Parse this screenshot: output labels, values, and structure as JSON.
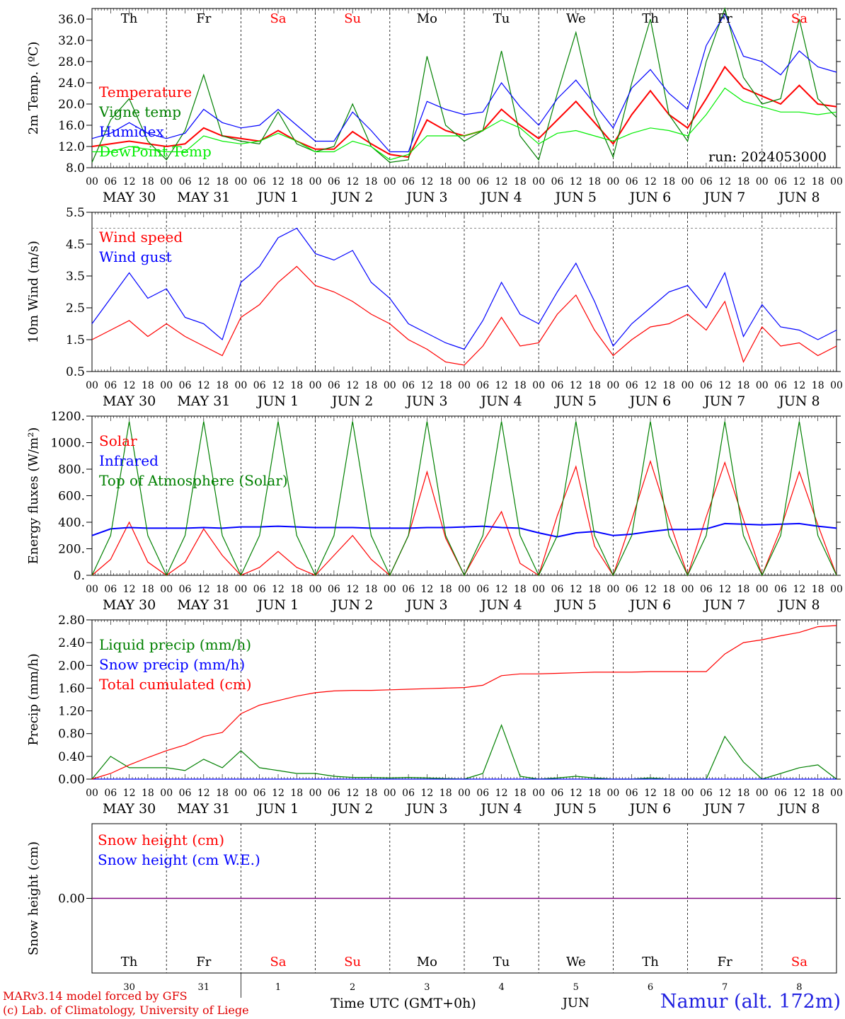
{
  "meteogram": {
    "run_label": "run: 2024053000",
    "day_names": [
      "Th",
      "Fr",
      "Sa",
      "Su",
      "Mo",
      "Tu",
      "We",
      "Th",
      "Fr",
      "Sa"
    ],
    "weekend_flags": [
      false,
      false,
      true,
      true,
      false,
      false,
      false,
      false,
      false,
      true
    ],
    "date_labels": [
      "MAY 30",
      "MAY 31",
      "JUN 1",
      "JUN 2",
      "JUN 3",
      "JUN 4",
      "JUN 5",
      "JUN 6",
      "JUN 7",
      "JUN 8"
    ],
    "hour_ticks": [
      "00",
      "06",
      "12",
      "18"
    ],
    "final_hour": "00",
    "bottom_day_numbers": [
      "30",
      "31",
      "1",
      "2",
      "3",
      "4",
      "5",
      "6",
      "7",
      "8"
    ],
    "bottom_month": "JUN",
    "time_axis_label": "Time UTC (GMT+0h)",
    "credit_line1": "MARv3.14 model forced by GFS",
    "credit_line2": "(c) Lab. of Climatology, University of Liege",
    "station": "Namur (alt. 172m)",
    "colors": {
      "red": "#ff0000",
      "green": "#008000",
      "blue": "#0000ff",
      "lightgreen": "#00ee00",
      "purple": "#800080",
      "day_text": "#000000",
      "weekend_text": "#ff0000"
    }
  },
  "chart_data": [
    {
      "type": "line",
      "ylabel": "2m Temp. (ºC)",
      "ylim": [
        8,
        38
      ],
      "yticks": [
        "8.0",
        "12.0",
        "16.0",
        "20.0",
        "24.0",
        "28.0",
        "32.0",
        "36.0"
      ],
      "x": [
        "2024-05-30 00",
        "2024-05-30 06",
        "2024-05-30 12",
        "2024-05-30 18",
        "2024-05-31 00",
        "2024-05-31 06",
        "2024-05-31 12",
        "2024-05-31 18",
        "2024-06-01 00",
        "2024-06-01 06",
        "2024-06-01 12",
        "2024-06-01 18",
        "2024-06-02 00",
        "2024-06-02 06",
        "2024-06-02 12",
        "2024-06-02 18",
        "2024-06-03 00",
        "2024-06-03 06",
        "2024-06-03 12",
        "2024-06-03 18",
        "2024-06-04 00",
        "2024-06-04 06",
        "2024-06-04 12",
        "2024-06-04 18",
        "2024-06-05 00",
        "2024-06-05 06",
        "2024-06-05 12",
        "2024-06-05 18",
        "2024-06-06 00",
        "2024-06-06 06",
        "2024-06-06 12",
        "2024-06-06 18",
        "2024-06-07 00",
        "2024-06-07 06",
        "2024-06-07 12",
        "2024-06-07 18",
        "2024-06-08 00",
        "2024-06-08 06",
        "2024-06-08 12",
        "2024-06-08 18",
        "2024-06-09 00"
      ],
      "series": [
        {
          "name": "Temperature",
          "color": "#ff0000",
          "values": [
            12.0,
            12.5,
            13.0,
            12.5,
            12.0,
            12.5,
            15.5,
            14.0,
            13.5,
            13.0,
            15.0,
            13.0,
            11.5,
            11.5,
            14.8,
            12.5,
            10.5,
            10.0,
            17.0,
            15.0,
            14.0,
            15.0,
            19.0,
            16.0,
            13.5,
            17.0,
            20.5,
            16.5,
            12.5,
            18.0,
            22.5,
            18.0,
            15.5,
            21.0,
            27.0,
            23.0,
            21.5,
            20.0,
            23.5,
            20.0,
            19.5
          ]
        },
        {
          "name": "Vigne temp",
          "color": "#008000",
          "values": [
            9.0,
            17.0,
            21.0,
            13.0,
            9.5,
            15.0,
            25.5,
            14.0,
            13.0,
            12.5,
            18.5,
            12.5,
            11.0,
            12.0,
            20.0,
            12.0,
            9.0,
            9.5,
            29.0,
            16.0,
            13.0,
            15.0,
            30.0,
            14.0,
            9.5,
            22.0,
            33.5,
            18.0,
            10.0,
            24.0,
            36.0,
            18.0,
            13.0,
            28.0,
            38.0,
            25.0,
            20.0,
            21.0,
            36.0,
            21.0,
            17.5
          ]
        },
        {
          "name": "Humidex",
          "color": "#0000ff",
          "values": [
            13.5,
            14.5,
            16.5,
            14.5,
            13.5,
            14.5,
            19.0,
            16.5,
            15.5,
            16.0,
            19.0,
            16.0,
            13.0,
            13.0,
            18.5,
            15.0,
            11.0,
            11.0,
            20.5,
            19.0,
            18.0,
            18.5,
            24.0,
            19.5,
            16.0,
            21.0,
            24.5,
            20.0,
            15.5,
            23.0,
            26.5,
            22.0,
            19.0,
            31.0,
            37.0,
            29.0,
            28.0,
            25.5,
            30.0,
            27.0,
            26.0
          ]
        },
        {
          "name": "DewPoint Temp",
          "color": "#00ee00",
          "values": [
            11.0,
            11.0,
            12.0,
            11.5,
            11.0,
            11.0,
            14.0,
            13.0,
            12.5,
            13.0,
            14.5,
            13.0,
            11.0,
            11.0,
            13.0,
            12.0,
            9.5,
            10.5,
            14.0,
            14.0,
            14.0,
            15.0,
            17.0,
            15.5,
            12.5,
            14.5,
            15.0,
            14.0,
            13.0,
            14.5,
            15.5,
            15.0,
            14.0,
            18.0,
            23.0,
            20.5,
            19.5,
            18.5,
            18.5,
            18.0,
            18.5
          ]
        }
      ]
    },
    {
      "type": "line",
      "ylabel": "10m Wind (m/s)",
      "ylim": [
        0.5,
        5.5
      ],
      "yticks": [
        "0.5",
        "1.5",
        "2.5",
        "3.5",
        "4.5",
        "5.5"
      ],
      "hline": 5.0,
      "x": [
        "2024-05-30 00",
        "2024-05-30 06",
        "2024-05-30 12",
        "2024-05-30 18",
        "2024-05-31 00",
        "2024-05-31 06",
        "2024-05-31 12",
        "2024-05-31 18",
        "2024-06-01 00",
        "2024-06-01 06",
        "2024-06-01 12",
        "2024-06-01 18",
        "2024-06-02 00",
        "2024-06-02 06",
        "2024-06-02 12",
        "2024-06-02 18",
        "2024-06-03 00",
        "2024-06-03 06",
        "2024-06-03 12",
        "2024-06-03 18",
        "2024-06-04 00",
        "2024-06-04 06",
        "2024-06-04 12",
        "2024-06-04 18",
        "2024-06-05 00",
        "2024-06-05 06",
        "2024-06-05 12",
        "2024-06-05 18",
        "2024-06-06 00",
        "2024-06-06 06",
        "2024-06-06 12",
        "2024-06-06 18",
        "2024-06-07 00",
        "2024-06-07 06",
        "2024-06-07 12",
        "2024-06-07 18",
        "2024-06-08 00",
        "2024-06-08 06",
        "2024-06-08 12",
        "2024-06-08 18",
        "2024-06-09 00"
      ],
      "series": [
        {
          "name": "Wind speed",
          "color": "#ff0000",
          "values": [
            1.5,
            1.8,
            2.1,
            1.6,
            2.0,
            1.6,
            1.3,
            1.0,
            2.2,
            2.6,
            3.3,
            3.8,
            3.2,
            3.0,
            2.7,
            2.3,
            2.0,
            1.5,
            1.2,
            0.8,
            0.7,
            1.3,
            2.2,
            1.3,
            1.4,
            2.3,
            2.9,
            1.8,
            1.0,
            1.5,
            1.9,
            2.0,
            2.3,
            1.8,
            2.7,
            0.8,
            1.9,
            1.3,
            1.4,
            1.0,
            1.3
          ]
        },
        {
          "name": "Wind gust",
          "color": "#0000ff",
          "values": [
            2.0,
            2.8,
            3.6,
            2.8,
            3.1,
            2.2,
            2.0,
            1.5,
            3.3,
            3.8,
            4.7,
            5.0,
            4.2,
            4.0,
            4.3,
            3.3,
            2.8,
            2.0,
            1.7,
            1.4,
            1.2,
            2.1,
            3.3,
            2.3,
            2.0,
            3.0,
            3.9,
            2.7,
            1.3,
            2.0,
            2.5,
            3.0,
            3.2,
            2.5,
            3.6,
            1.6,
            2.6,
            1.9,
            1.8,
            1.5,
            1.8
          ]
        }
      ]
    },
    {
      "type": "line",
      "ylabel": "Energy fluxes (W/m²)",
      "ylim": [
        0,
        1200
      ],
      "yticks": [
        "0.",
        "200.",
        "400.",
        "600.",
        "800.",
        "1000.",
        "1200."
      ],
      "x": [
        "2024-05-30 00",
        "2024-05-30 06",
        "2024-05-30 12",
        "2024-05-30 18",
        "2024-05-31 00",
        "2024-05-31 06",
        "2024-05-31 12",
        "2024-05-31 18",
        "2024-06-01 00",
        "2024-06-01 06",
        "2024-06-01 12",
        "2024-06-01 18",
        "2024-06-02 00",
        "2024-06-02 06",
        "2024-06-02 12",
        "2024-06-02 18",
        "2024-06-03 00",
        "2024-06-03 06",
        "2024-06-03 12",
        "2024-06-03 18",
        "2024-06-04 00",
        "2024-06-04 06",
        "2024-06-04 12",
        "2024-06-04 18",
        "2024-06-05 00",
        "2024-06-05 06",
        "2024-06-05 12",
        "2024-06-05 18",
        "2024-06-06 00",
        "2024-06-06 06",
        "2024-06-06 12",
        "2024-06-06 18",
        "2024-06-07 00",
        "2024-06-07 06",
        "2024-06-07 12",
        "2024-06-07 18",
        "2024-06-08 00",
        "2024-06-08 06",
        "2024-06-08 12",
        "2024-06-08 18",
        "2024-06-09 00"
      ],
      "series": [
        {
          "name": "Solar",
          "color": "#ff0000",
          "values": [
            0,
            120,
            400,
            100,
            0,
            100,
            350,
            150,
            0,
            60,
            180,
            60,
            0,
            150,
            300,
            120,
            0,
            300,
            780,
            280,
            0,
            250,
            480,
            90,
            0,
            450,
            820,
            220,
            0,
            420,
            860,
            420,
            0,
            440,
            850,
            420,
            0,
            350,
            780,
            380,
            0
          ]
        },
        {
          "name": "Infrared",
          "color": "#0000ff",
          "values": [
            300,
            350,
            360,
            355,
            355,
            355,
            360,
            355,
            365,
            365,
            370,
            365,
            360,
            360,
            360,
            355,
            355,
            355,
            360,
            360,
            365,
            370,
            360,
            355,
            320,
            290,
            320,
            330,
            300,
            310,
            330,
            345,
            345,
            350,
            390,
            385,
            380,
            385,
            390,
            370,
            355
          ]
        },
        {
          "name": "Top of Atmosphere (Solar)",
          "color": "#008000",
          "values": [
            0,
            300,
            1160,
            300,
            0,
            300,
            1160,
            300,
            0,
            300,
            1160,
            300,
            0,
            300,
            1160,
            300,
            0,
            300,
            1160,
            300,
            0,
            300,
            1160,
            300,
            0,
            300,
            1160,
            300,
            0,
            300,
            1160,
            300,
            0,
            300,
            1160,
            300,
            0,
            300,
            1160,
            300,
            0
          ]
        }
      ]
    },
    {
      "type": "line",
      "ylabel": "Precip (mm/h)",
      "ylim": [
        0,
        2.8
      ],
      "yticks": [
        "0.00",
        "0.40",
        "0.80",
        "1.20",
        "1.60",
        "2.00",
        "2.40",
        "2.80"
      ],
      "x": [
        "2024-05-30 00",
        "2024-05-30 06",
        "2024-05-30 12",
        "2024-05-30 18",
        "2024-05-31 00",
        "2024-05-31 06",
        "2024-05-31 12",
        "2024-05-31 18",
        "2024-06-01 00",
        "2024-06-01 06",
        "2024-06-01 12",
        "2024-06-01 18",
        "2024-06-02 00",
        "2024-06-02 06",
        "2024-06-02 12",
        "2024-06-02 18",
        "2024-06-03 00",
        "2024-06-03 06",
        "2024-06-03 12",
        "2024-06-03 18",
        "2024-06-04 00",
        "2024-06-04 06",
        "2024-06-04 12",
        "2024-06-04 18",
        "2024-06-05 00",
        "2024-06-05 06",
        "2024-06-05 12",
        "2024-06-05 18",
        "2024-06-06 00",
        "2024-06-06 06",
        "2024-06-06 12",
        "2024-06-06 18",
        "2024-06-07 00",
        "2024-06-07 06",
        "2024-06-07 12",
        "2024-06-07 18",
        "2024-06-08 00",
        "2024-06-08 06",
        "2024-06-08 12",
        "2024-06-08 18",
        "2024-06-09 00"
      ],
      "series": [
        {
          "name": "Liquid precip (mm/h)",
          "color": "#008000",
          "values": [
            0.0,
            0.4,
            0.2,
            0.2,
            0.2,
            0.15,
            0.35,
            0.2,
            0.5,
            0.2,
            0.15,
            0.1,
            0.1,
            0.05,
            0.03,
            0.03,
            0.02,
            0.03,
            0.02,
            0.01,
            0.0,
            0.1,
            0.95,
            0.05,
            0.0,
            0.02,
            0.05,
            0.02,
            0.0,
            0.0,
            0.02,
            0.0,
            0.0,
            0.0,
            0.75,
            0.3,
            0.0,
            0.1,
            0.2,
            0.25,
            0.0
          ]
        },
        {
          "name": "Snow precip (mm/h)",
          "color": "#0000ff",
          "values": [
            0,
            0,
            0,
            0,
            0,
            0,
            0,
            0,
            0,
            0,
            0,
            0,
            0,
            0,
            0,
            0,
            0,
            0,
            0,
            0,
            0,
            0,
            0,
            0,
            0,
            0,
            0,
            0,
            0,
            0,
            0,
            0,
            0,
            0,
            0,
            0,
            0,
            0,
            0,
            0,
            0
          ]
        },
        {
          "name": "Total cumulated (cm)",
          "color": "#ff0000",
          "values": [
            0.0,
            0.1,
            0.25,
            0.38,
            0.5,
            0.6,
            0.75,
            0.82,
            1.15,
            1.3,
            1.38,
            1.46,
            1.52,
            1.55,
            1.56,
            1.56,
            1.57,
            1.58,
            1.59,
            1.6,
            1.61,
            1.65,
            1.82,
            1.85,
            1.85,
            1.86,
            1.87,
            1.88,
            1.88,
            1.88,
            1.89,
            1.89,
            1.89,
            1.89,
            2.2,
            2.4,
            2.45,
            2.52,
            2.58,
            2.68,
            2.7
          ]
        }
      ]
    },
    {
      "type": "line",
      "ylabel": "Snow height (cm)",
      "ylim": [
        -1,
        1
      ],
      "yticks": [
        "0.00"
      ],
      "x": [
        "2024-05-30 00",
        "2024-06-09 00"
      ],
      "series": [
        {
          "name": "Snow height (cm)",
          "color": "#ff0000",
          "values": [
            0,
            0
          ]
        },
        {
          "name": "Snow height (cm W.E.)",
          "color": "#0000ff",
          "values": [
            0,
            0
          ]
        }
      ]
    }
  ]
}
